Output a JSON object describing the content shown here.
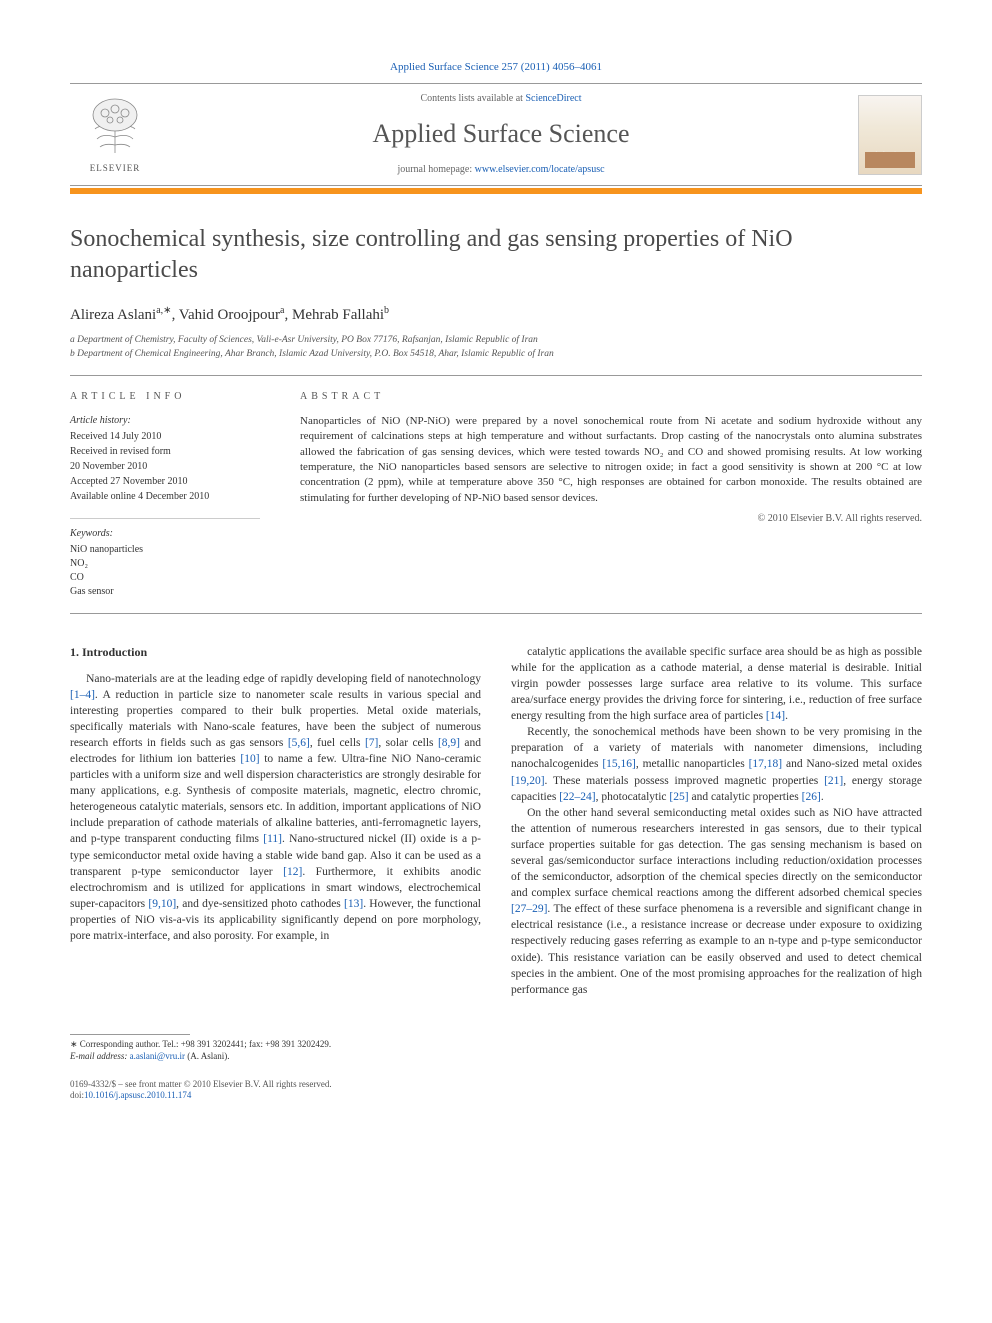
{
  "journal_ref": "Applied Surface Science 257 (2011) 4056–4061",
  "contents_text": "Contents lists available at ",
  "contents_link": "ScienceDirect",
  "journal_name": "Applied Surface Science",
  "homepage_text": "journal homepage: ",
  "homepage_link": "www.elsevier.com/locate/apsusc",
  "elsevier": "ELSEVIER",
  "cover_label": "applied surface science",
  "title": "Sonochemical synthesis, size controlling and gas sensing properties of NiO nanoparticles",
  "authors_html": "Alireza Aslani<sup>a,∗</sup>, Vahid Oroojpour<sup>a</sup>, Mehrab Fallahi<sup>b</sup>",
  "affiliations": [
    "a Department of Chemistry, Faculty of Sciences, Vali-e-Asr University, PO Box 77176, Rafsanjan, Islamic Republic of Iran",
    "b Department of Chemical Engineering, Ahar Branch, Islamic Azad University, P.O. Box 54518, Ahar, Islamic Republic of Iran"
  ],
  "article_info_label": "ARTICLE INFO",
  "history_label": "Article history:",
  "history": [
    "Received 14 July 2010",
    "Received in revised form",
    "20 November 2010",
    "Accepted 27 November 2010",
    "Available online 4 December 2010"
  ],
  "keywords_label": "Keywords:",
  "keywords": [
    "NiO nanoparticles",
    "NO₂",
    "CO",
    "Gas sensor"
  ],
  "abstract_label": "ABSTRACT",
  "abstract": "Nanoparticles of NiO (NP-NiO) were prepared by a novel sonochemical route from Ni acetate and sodium hydroxide without any requirement of calcinations steps at high temperature and without surfactants. Drop casting of the nanocrystals onto alumina substrates allowed the fabrication of gas sensing devices, which were tested towards NO₂ and CO and showed promising results. At low working temperature, the NiO nanoparticles based sensors are selective to nitrogen oxide; in fact a good sensitivity is shown at 200 °C at low concentration (2 ppm), while at temperature above 350 °C, high responses are obtained for carbon monoxide. The results obtained are stimulating for further developing of NP-NiO based sensor devices.",
  "copyright": "© 2010 Elsevier B.V. All rights reserved.",
  "intro_heading": "1. Introduction",
  "col1_p1": "Nano-materials are at the leading edge of rapidly developing field of nanotechnology [1–4]. A reduction in particle size to nanometer scale results in various special and interesting properties compared to their bulk properties. Metal oxide materials, specifically materials with Nano-scale features, have been the subject of numerous research efforts in fields such as gas sensors [5,6], fuel cells [7], solar cells [8,9] and electrodes for lithium ion batteries [10] to name a few. Ultra-fine NiO Nano-ceramic particles with a uniform size and well dispersion characteristics are strongly desirable for many applications, e.g. Synthesis of composite materials, magnetic, electro chromic, heterogeneous catalytic materials, sensors etc. In addition, important applications of NiO include preparation of cathode materials of alkaline batteries, anti-ferromagnetic layers, and p-type transparent conducting films [11]. Nano-structured nickel (II) oxide is a p-type semiconductor metal oxide having a stable wide band gap. Also it can be used as a transparent p-type semiconductor layer [12]. Furthermore, it exhibits anodic electrochromism and is utilized for applications in smart windows, electrochemical super-capacitors [9,10], and dye-sensitized photo cathodes [13]. However, the functional properties of NiO vis-a-vis its applicability significantly depend on pore morphology, pore matrix-interface, and also porosity. For example, in",
  "col2_p1": "catalytic applications the available specific surface area should be as high as possible while for the application as a cathode material, a dense material is desirable. Initial virgin powder possesses large surface area relative to its volume. This surface area/surface energy provides the driving force for sintering, i.e., reduction of free surface energy resulting from the high surface area of particles [14].",
  "col2_p2": "Recently, the sonochemical methods have been shown to be very promising in the preparation of a variety of materials with nanometer dimensions, including nanochalcogenides [15,16], metallic nanoparticles [17,18] and Nano-sized metal oxides [19,20]. These materials possess improved magnetic properties [21], energy storage capacities [22–24], photocatalytic [25] and catalytic properties [26].",
  "col2_p3": "On the other hand several semiconducting metal oxides such as NiO have attracted the attention of numerous researchers interested in gas sensors, due to their typical surface properties suitable for gas detection. The gas sensing mechanism is based on several gas/semiconductor surface interactions including reduction/oxidation processes of the semiconductor, adsorption of the chemical species directly on the semiconductor and complex surface chemical reactions among the different adsorbed chemical species [27–29]. The effect of these surface phenomena is a reversible and significant change in electrical resistance (i.e., a resistance increase or decrease under exposure to oxidizing respectively reducing gases referring as example to an n-type and p-type semiconductor oxide). This resistance variation can be easily observed and used to detect chemical species in the ambient. One of the most promising approaches for the realization of high performance gas",
  "corresponding": "∗ Corresponding author. Tel.: +98 391 3202441; fax: +98 391 3202429.",
  "email_label": "E-mail address: ",
  "email": "a.aslani@vru.ir",
  "email_suffix": " (A. Aslani).",
  "footer_line1": "0169-4332/$ – see front matter © 2010 Elsevier B.V. All rights reserved.",
  "footer_line2_prefix": "doi:",
  "doi": "10.1016/j.apsusc.2010.11.174",
  "colors": {
    "accent_orange": "#f7941d",
    "link_blue": "#1a5fb4",
    "text_gray": "#4a4a4a"
  }
}
